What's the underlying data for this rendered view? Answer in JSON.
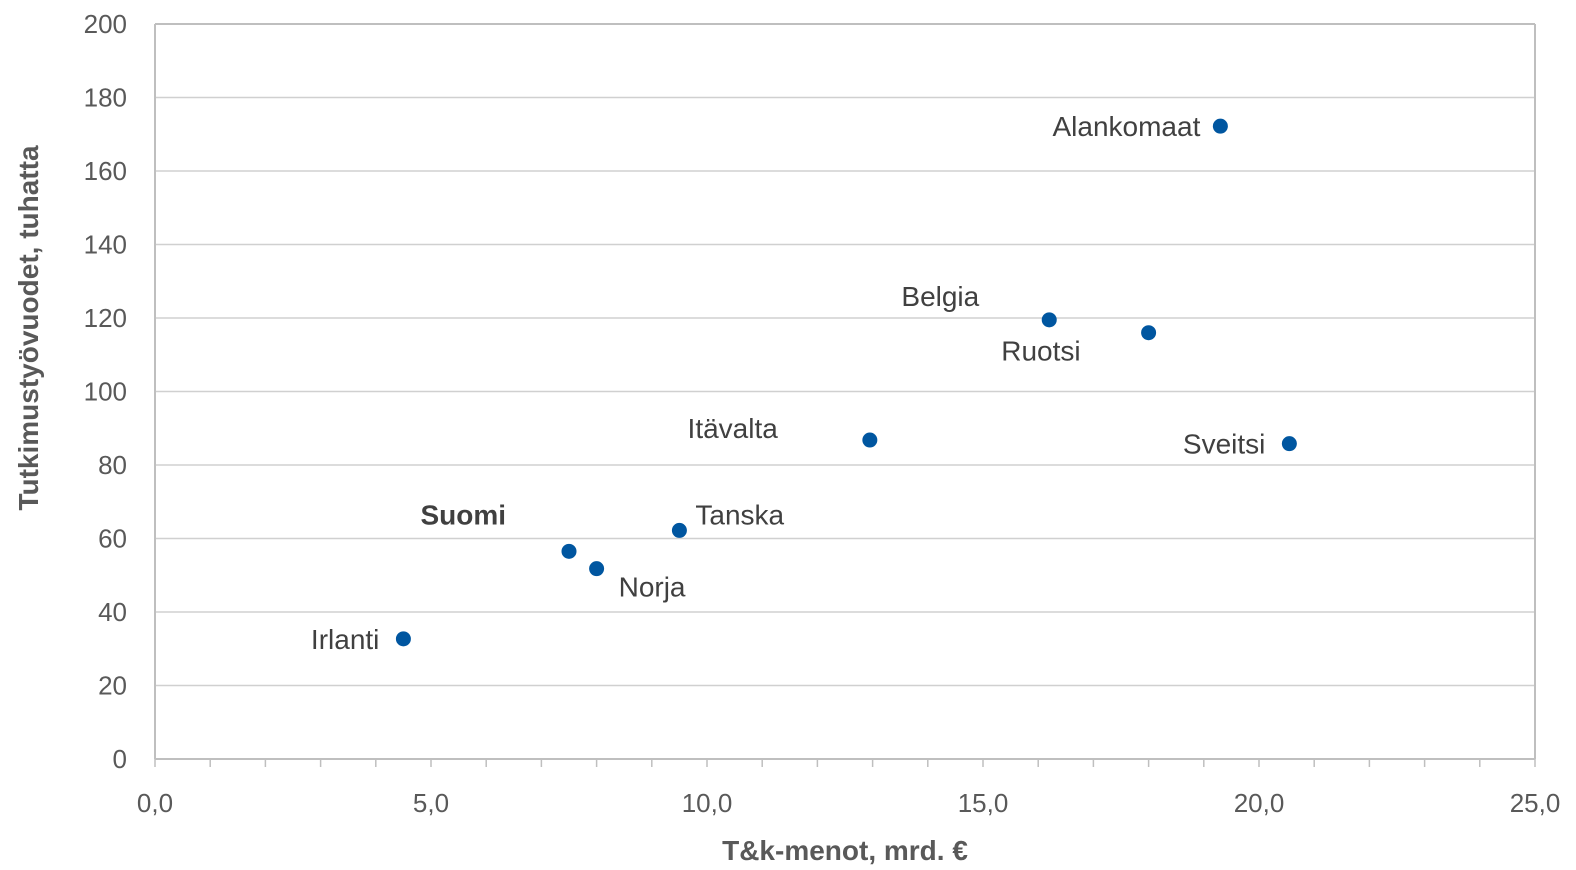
{
  "chart_data": {
    "type": "scatter",
    "xlabel": "T&k-menot, mrd. €",
    "ylabel": "Tutkimustyövuodet, tuhatta",
    "xlim": [
      0,
      25
    ],
    "ylim": [
      0,
      200
    ],
    "x_ticks": [
      "0,0",
      "5,0",
      "10,0",
      "15,0",
      "20,0",
      "25,0"
    ],
    "y_ticks": [
      "0",
      "20",
      "40",
      "60",
      "80",
      "100",
      "120",
      "140",
      "160",
      "180",
      "200"
    ],
    "grid": true,
    "marker_color": "#0056a0",
    "points": [
      {
        "label": "Irlanti",
        "x": 4.5,
        "y": 32.7
      },
      {
        "label": "Suomi",
        "x": 7.5,
        "y": 56.5,
        "bold": true
      },
      {
        "label": "Norja",
        "x": 8.0,
        "y": 51.8
      },
      {
        "label": "Tanska",
        "x": 9.5,
        "y": 62.2
      },
      {
        "label": "Itävalta",
        "x": 12.95,
        "y": 86.8
      },
      {
        "label": "Belgia",
        "x": 16.2,
        "y": 119.5
      },
      {
        "label": "Ruotsi",
        "x": 18.0,
        "y": 116.0
      },
      {
        "label": "Sveitsi",
        "x": 20.55,
        "y": 85.8
      },
      {
        "label": "Alankomaat",
        "x": 19.3,
        "y": 172.2
      }
    ]
  }
}
